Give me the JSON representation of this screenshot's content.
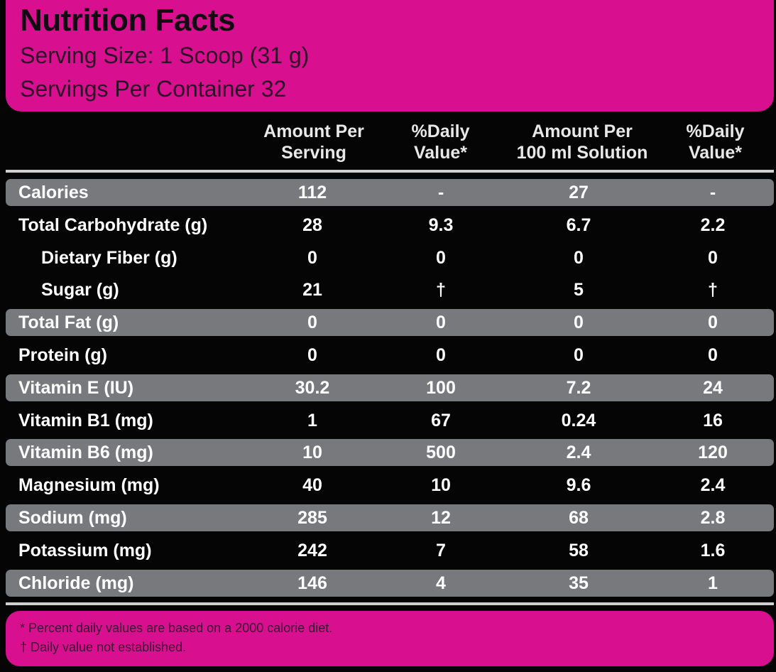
{
  "header": {
    "title": "Nutrition Facts",
    "serving_size": "Serving Size: 1 Scoop (31 g)",
    "servings_per_container": "Servings Per Container 32"
  },
  "columns": [
    {
      "line1": "Amount Per",
      "line2": "Serving"
    },
    {
      "line1": "%Daily",
      "line2": "Value*"
    },
    {
      "line1": "Amount Per",
      "line2": "100 ml Solution"
    },
    {
      "line1": "%Daily",
      "line2": "Value*"
    }
  ],
  "rows": [
    {
      "label": "Calories",
      "values": [
        "112",
        "-",
        "27",
        "-"
      ]
    },
    {
      "label": "Total Carbohydrate (g)",
      "values": [
        "28",
        "9.3",
        "6.7",
        "2.2"
      ]
    },
    {
      "label": "Dietary Fiber (g)",
      "values": [
        "0",
        "0",
        "0",
        "0"
      ]
    },
    {
      "label": "Sugar (g)",
      "values": [
        "21",
        "†",
        "5",
        "†"
      ]
    },
    {
      "label": "Total Fat (g)",
      "values": [
        "0",
        "0",
        "0",
        "0"
      ]
    },
    {
      "label": "Protein (g)",
      "values": [
        "0",
        "0",
        "0",
        "0"
      ]
    },
    {
      "label": "Vitamin E (IU)",
      "values": [
        "30.2",
        "100",
        "7.2",
        "24"
      ]
    },
    {
      "label": "Vitamin B1 (mg)",
      "values": [
        "1",
        "67",
        "0.24",
        "16"
      ]
    },
    {
      "label": "Vitamin B6 (mg)",
      "values": [
        "10",
        "500",
        "2.4",
        "120"
      ]
    },
    {
      "label": "Magnesium (mg)",
      "values": [
        "40",
        "10",
        "9.6",
        "2.4"
      ]
    },
    {
      "label": "Sodium (mg)",
      "values": [
        "285",
        "12",
        "68",
        "2.8"
      ]
    },
    {
      "label": "Potassium (mg)",
      "values": [
        "242",
        "7",
        "58",
        "1.6"
      ]
    },
    {
      "label": "Chloride (mg)",
      "values": [
        "146",
        "4",
        "35",
        "1"
      ]
    }
  ],
  "footer": {
    "note_percent": "* Percent daily values are based on a 2000 calorie diet.",
    "note_dagger": "† Daily value not established."
  },
  "colors": {
    "accent": "#d80f8f",
    "shaded_row": "#77797d",
    "background": "#050505"
  }
}
